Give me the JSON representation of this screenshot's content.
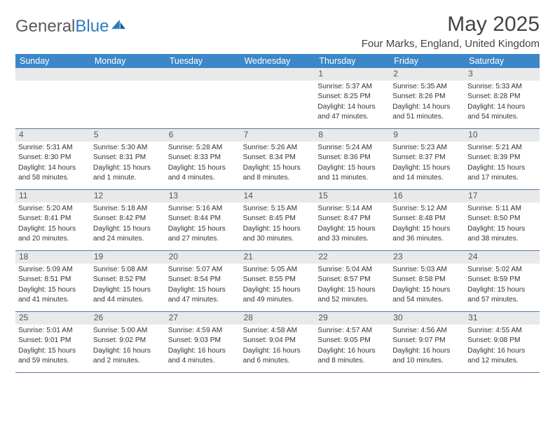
{
  "brand": {
    "name1": "General",
    "name2": "Blue"
  },
  "title": "May 2025",
  "location": "Four Marks, England, United Kingdom",
  "colors": {
    "header_bg": "#3b87c8",
    "header_text": "#ffffff",
    "daynum_bg": "#e7e9eb",
    "rule": "#5a7a9a",
    "logo_blue": "#2d7bbf"
  },
  "day_names": [
    "Sunday",
    "Monday",
    "Tuesday",
    "Wednesday",
    "Thursday",
    "Friday",
    "Saturday"
  ],
  "weeks": [
    [
      null,
      null,
      null,
      null,
      {
        "n": "1",
        "sr": "Sunrise: 5:37 AM",
        "ss": "Sunset: 8:25 PM",
        "dl1": "Daylight: 14 hours",
        "dl2": "and 47 minutes."
      },
      {
        "n": "2",
        "sr": "Sunrise: 5:35 AM",
        "ss": "Sunset: 8:26 PM",
        "dl1": "Daylight: 14 hours",
        "dl2": "and 51 minutes."
      },
      {
        "n": "3",
        "sr": "Sunrise: 5:33 AM",
        "ss": "Sunset: 8:28 PM",
        "dl1": "Daylight: 14 hours",
        "dl2": "and 54 minutes."
      }
    ],
    [
      {
        "n": "4",
        "sr": "Sunrise: 5:31 AM",
        "ss": "Sunset: 8:30 PM",
        "dl1": "Daylight: 14 hours",
        "dl2": "and 58 minutes."
      },
      {
        "n": "5",
        "sr": "Sunrise: 5:30 AM",
        "ss": "Sunset: 8:31 PM",
        "dl1": "Daylight: 15 hours",
        "dl2": "and 1 minute."
      },
      {
        "n": "6",
        "sr": "Sunrise: 5:28 AM",
        "ss": "Sunset: 8:33 PM",
        "dl1": "Daylight: 15 hours",
        "dl2": "and 4 minutes."
      },
      {
        "n": "7",
        "sr": "Sunrise: 5:26 AM",
        "ss": "Sunset: 8:34 PM",
        "dl1": "Daylight: 15 hours",
        "dl2": "and 8 minutes."
      },
      {
        "n": "8",
        "sr": "Sunrise: 5:24 AM",
        "ss": "Sunset: 8:36 PM",
        "dl1": "Daylight: 15 hours",
        "dl2": "and 11 minutes."
      },
      {
        "n": "9",
        "sr": "Sunrise: 5:23 AM",
        "ss": "Sunset: 8:37 PM",
        "dl1": "Daylight: 15 hours",
        "dl2": "and 14 minutes."
      },
      {
        "n": "10",
        "sr": "Sunrise: 5:21 AM",
        "ss": "Sunset: 8:39 PM",
        "dl1": "Daylight: 15 hours",
        "dl2": "and 17 minutes."
      }
    ],
    [
      {
        "n": "11",
        "sr": "Sunrise: 5:20 AM",
        "ss": "Sunset: 8:41 PM",
        "dl1": "Daylight: 15 hours",
        "dl2": "and 20 minutes."
      },
      {
        "n": "12",
        "sr": "Sunrise: 5:18 AM",
        "ss": "Sunset: 8:42 PM",
        "dl1": "Daylight: 15 hours",
        "dl2": "and 24 minutes."
      },
      {
        "n": "13",
        "sr": "Sunrise: 5:16 AM",
        "ss": "Sunset: 8:44 PM",
        "dl1": "Daylight: 15 hours",
        "dl2": "and 27 minutes."
      },
      {
        "n": "14",
        "sr": "Sunrise: 5:15 AM",
        "ss": "Sunset: 8:45 PM",
        "dl1": "Daylight: 15 hours",
        "dl2": "and 30 minutes."
      },
      {
        "n": "15",
        "sr": "Sunrise: 5:14 AM",
        "ss": "Sunset: 8:47 PM",
        "dl1": "Daylight: 15 hours",
        "dl2": "and 33 minutes."
      },
      {
        "n": "16",
        "sr": "Sunrise: 5:12 AM",
        "ss": "Sunset: 8:48 PM",
        "dl1": "Daylight: 15 hours",
        "dl2": "and 36 minutes."
      },
      {
        "n": "17",
        "sr": "Sunrise: 5:11 AM",
        "ss": "Sunset: 8:50 PM",
        "dl1": "Daylight: 15 hours",
        "dl2": "and 38 minutes."
      }
    ],
    [
      {
        "n": "18",
        "sr": "Sunrise: 5:09 AM",
        "ss": "Sunset: 8:51 PM",
        "dl1": "Daylight: 15 hours",
        "dl2": "and 41 minutes."
      },
      {
        "n": "19",
        "sr": "Sunrise: 5:08 AM",
        "ss": "Sunset: 8:52 PM",
        "dl1": "Daylight: 15 hours",
        "dl2": "and 44 minutes."
      },
      {
        "n": "20",
        "sr": "Sunrise: 5:07 AM",
        "ss": "Sunset: 8:54 PM",
        "dl1": "Daylight: 15 hours",
        "dl2": "and 47 minutes."
      },
      {
        "n": "21",
        "sr": "Sunrise: 5:05 AM",
        "ss": "Sunset: 8:55 PM",
        "dl1": "Daylight: 15 hours",
        "dl2": "and 49 minutes."
      },
      {
        "n": "22",
        "sr": "Sunrise: 5:04 AM",
        "ss": "Sunset: 8:57 PM",
        "dl1": "Daylight: 15 hours",
        "dl2": "and 52 minutes."
      },
      {
        "n": "23",
        "sr": "Sunrise: 5:03 AM",
        "ss": "Sunset: 8:58 PM",
        "dl1": "Daylight: 15 hours",
        "dl2": "and 54 minutes."
      },
      {
        "n": "24",
        "sr": "Sunrise: 5:02 AM",
        "ss": "Sunset: 8:59 PM",
        "dl1": "Daylight: 15 hours",
        "dl2": "and 57 minutes."
      }
    ],
    [
      {
        "n": "25",
        "sr": "Sunrise: 5:01 AM",
        "ss": "Sunset: 9:01 PM",
        "dl1": "Daylight: 15 hours",
        "dl2": "and 59 minutes."
      },
      {
        "n": "26",
        "sr": "Sunrise: 5:00 AM",
        "ss": "Sunset: 9:02 PM",
        "dl1": "Daylight: 16 hours",
        "dl2": "and 2 minutes."
      },
      {
        "n": "27",
        "sr": "Sunrise: 4:59 AM",
        "ss": "Sunset: 9:03 PM",
        "dl1": "Daylight: 16 hours",
        "dl2": "and 4 minutes."
      },
      {
        "n": "28",
        "sr": "Sunrise: 4:58 AM",
        "ss": "Sunset: 9:04 PM",
        "dl1": "Daylight: 16 hours",
        "dl2": "and 6 minutes."
      },
      {
        "n": "29",
        "sr": "Sunrise: 4:57 AM",
        "ss": "Sunset: 9:05 PM",
        "dl1": "Daylight: 16 hours",
        "dl2": "and 8 minutes."
      },
      {
        "n": "30",
        "sr": "Sunrise: 4:56 AM",
        "ss": "Sunset: 9:07 PM",
        "dl1": "Daylight: 16 hours",
        "dl2": "and 10 minutes."
      },
      {
        "n": "31",
        "sr": "Sunrise: 4:55 AM",
        "ss": "Sunset: 9:08 PM",
        "dl1": "Daylight: 16 hours",
        "dl2": "and 12 minutes."
      }
    ]
  ]
}
